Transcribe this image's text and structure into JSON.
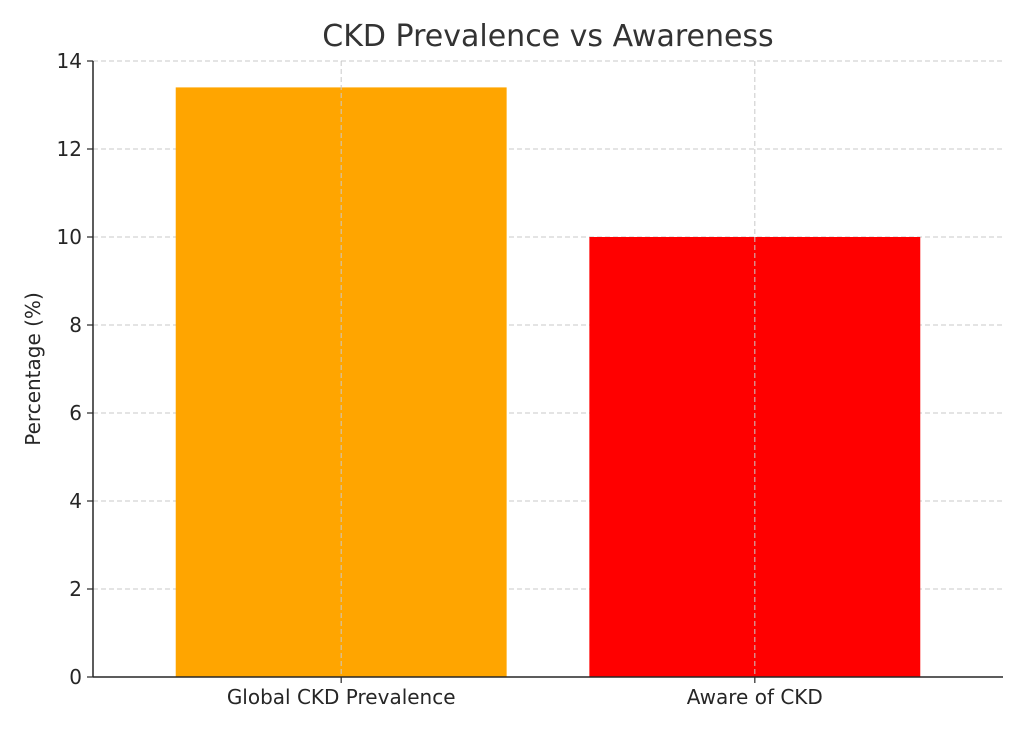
{
  "chart_data": {
    "type": "bar",
    "title": "CKD Prevalence vs Awareness",
    "xlabel": "",
    "ylabel": "Percentage (%)",
    "categories": [
      "Global CKD Prevalence",
      "Aware of CKD"
    ],
    "values": [
      13.4,
      10
    ],
    "colors": [
      "#ffa500",
      "#ff0000"
    ],
    "ylim": [
      0,
      14
    ],
    "yticks": [
      "0",
      "2",
      "4",
      "6",
      "8",
      "10",
      "12",
      "14"
    ],
    "grid": true,
    "grid_style": "dashed",
    "legend": "none"
  }
}
